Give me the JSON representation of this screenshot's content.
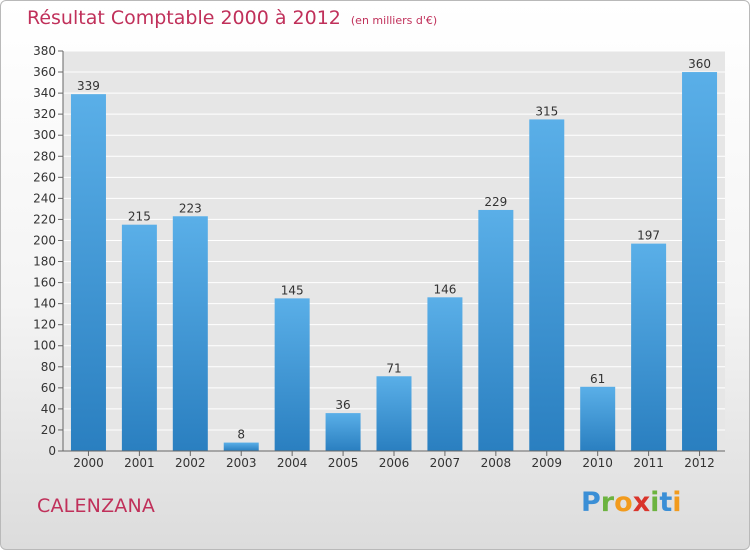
{
  "header": {
    "title": "Résultat Comptable 2000 à 2012",
    "unit": "(en milliers d'€)"
  },
  "commune": "CALENZANA",
  "logo": {
    "text": "Proxiti",
    "letters": [
      "P",
      "r",
      "o",
      "x",
      "i",
      "t",
      "i"
    ],
    "colors": [
      "#3b8fd6",
      "#6cb33f",
      "#f29b1d",
      "#d9342b",
      "#6cb33f",
      "#3b8fd6",
      "#f29b1d"
    ]
  },
  "chart_data": {
    "type": "bar",
    "title": "Résultat Comptable 2000 à 2012",
    "subtitle": "(en milliers d'€)",
    "categories": [
      "2000",
      "2001",
      "2002",
      "2003",
      "2004",
      "2005",
      "2006",
      "2007",
      "2008",
      "2009",
      "2010",
      "2011",
      "2012"
    ],
    "values": [
      339,
      215,
      223,
      8,
      145,
      36,
      71,
      146,
      229,
      315,
      61,
      197,
      360
    ],
    "data_labels": [
      "339",
      "215",
      "223",
      "8",
      "145",
      "36",
      "71",
      "146",
      "229",
      "315",
      "61",
      "197",
      "360"
    ],
    "ylim": [
      0,
      380
    ],
    "yticks": [
      0,
      20,
      40,
      60,
      80,
      100,
      120,
      140,
      160,
      180,
      200,
      220,
      240,
      260,
      280,
      300,
      320,
      340,
      360,
      380
    ],
    "xlabel": "",
    "ylabel": "",
    "grid": true,
    "colors": {
      "bar_top": "#5aafe8",
      "bar_bottom": "#2a7fc0",
      "title": "#c0305a",
      "grid": "#ffffff",
      "plot_bg": "#e6e6e6"
    }
  }
}
